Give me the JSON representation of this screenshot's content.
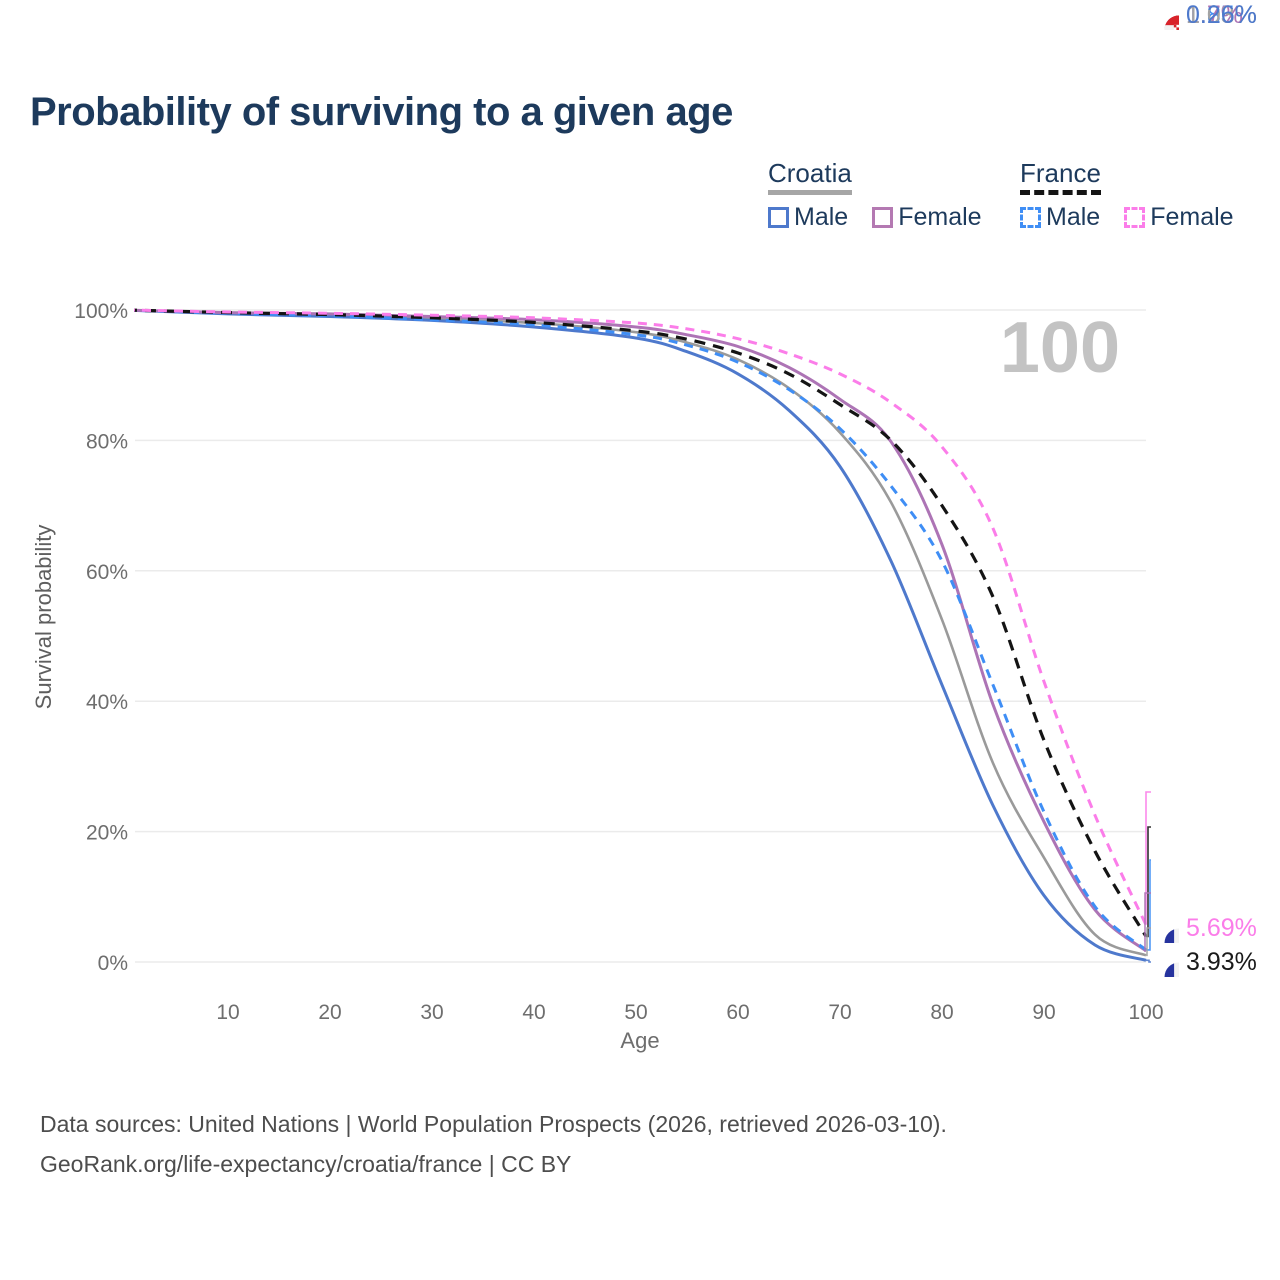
{
  "page": {
    "title": "Probability of surviving to a given age",
    "watermark": "100"
  },
  "legend": {
    "groups": [
      {
        "label": "Croatia",
        "line_style": "solid",
        "underline_color": "#a6a6a6",
        "items": [
          {
            "label": "Male",
            "color": "#4e79cc"
          },
          {
            "label": "Female",
            "color": "#b479b2"
          }
        ]
      },
      {
        "label": "France",
        "line_style": "dashed",
        "underline_color": "#141414",
        "items": [
          {
            "label": "Male",
            "color": "#3f8ef5"
          },
          {
            "label": "Female",
            "color": "#fb7de9"
          }
        ]
      }
    ]
  },
  "chart_data": {
    "type": "line",
    "title": "Probability of surviving to a given age",
    "xlabel": "Age",
    "ylabel": "Survival probability",
    "xlim": [
      0,
      100
    ],
    "ylim": [
      0,
      100
    ],
    "grid": "horizontal-only",
    "legend_position": "top-right",
    "x_tick_labels": [
      "10",
      "20",
      "30",
      "40",
      "50",
      "60",
      "70",
      "80",
      "90",
      "100"
    ],
    "y_tick_labels": [
      "100%",
      "80%",
      "60%",
      "40%",
      "20%",
      "0%"
    ],
    "y_tick_values": [
      100,
      80,
      60,
      40,
      20,
      0
    ],
    "age_watermark": "100",
    "x": [
      0,
      10,
      20,
      30,
      40,
      50,
      55,
      60,
      65,
      70,
      75,
      80,
      85,
      90,
      95,
      100
    ],
    "series": [
      {
        "name": "Croatia Total",
        "country": "Croatia",
        "sex": "Both",
        "color": "#9a9a9a",
        "dash": "solid",
        "end_label": "1.03%",
        "values": [
          100,
          99.5,
          99.2,
          98.7,
          98.0,
          96.6,
          95.0,
          92.4,
          88.0,
          81.2,
          70.5,
          52.5,
          30.5,
          16.0,
          4.2,
          1.03
        ]
      },
      {
        "name": "Croatia Male",
        "country": "Croatia",
        "sex": "Male",
        "color": "#4e79cc",
        "dash": "solid",
        "end_label": "0.26%",
        "values": [
          100,
          99.4,
          99.0,
          98.4,
          97.4,
          95.7,
          93.6,
          90.2,
          84.6,
          76.0,
          61.5,
          42.5,
          24.0,
          10.2,
          2.6,
          0.26
        ]
      },
      {
        "name": "Croatia Female",
        "country": "Croatia",
        "sex": "Female",
        "color": "#ad74b5",
        "dash": "solid",
        "end_label": "1.7%",
        "values": [
          100,
          99.6,
          99.4,
          99.0,
          98.5,
          97.4,
          96.2,
          94.4,
          91.2,
          86.3,
          79.8,
          64.0,
          39.5,
          21.5,
          8.0,
          1.7
        ]
      },
      {
        "name": "France Male",
        "country": "France",
        "sex": "Male",
        "color": "#3f8ef5",
        "dash": "dashed",
        "end_label": "1.85%",
        "values": [
          100,
          99.5,
          99.1,
          98.5,
          97.7,
          96.2,
          94.6,
          92.0,
          87.8,
          81.8,
          73.0,
          61.5,
          42.5,
          23.0,
          8.5,
          1.85
        ]
      },
      {
        "name": "France Total",
        "country": "France",
        "sex": "Both",
        "color": "#141414",
        "dash": "dashed",
        "end_label": "3.93%",
        "values": [
          100,
          99.6,
          99.3,
          98.8,
          98.1,
          96.8,
          95.5,
          93.4,
          90.2,
          85.5,
          80.0,
          70.0,
          56.0,
          34.0,
          17.0,
          3.93
        ]
      },
      {
        "name": "France Female",
        "country": "France",
        "sex": "Female",
        "color": "#fb7de9",
        "dash": "dashed",
        "end_label": "5.69%",
        "values": [
          100,
          99.7,
          99.5,
          99.2,
          98.8,
          98.0,
          97.1,
          95.6,
          93.3,
          90.2,
          85.8,
          79.0,
          66.5,
          43.0,
          22.5,
          5.69
        ]
      }
    ]
  },
  "end_labels": [
    {
      "value": "5.69%",
      "series": "France Female",
      "flag": "france",
      "color": "#fb7de9"
    },
    {
      "value": "3.93%",
      "series": "France Total",
      "flag": "france",
      "color": "#1a1a1a"
    },
    {
      "value": "1.85%",
      "series": "France Male",
      "flag": "france",
      "color": "#3f8ef5"
    },
    {
      "value": "1.7%",
      "series": "Croatia Female",
      "flag": "croatia",
      "color": "#ad74b5"
    },
    {
      "value": "1.03%",
      "series": "Croatia Total",
      "flag": "croatia",
      "color": "#a3a3a3"
    },
    {
      "value": "0.26%",
      "series": "Croatia Male",
      "flag": "croatia",
      "color": "#4e79cc"
    }
  ],
  "footer": {
    "line1": "Data sources: United Nations | World Population Prospects (2026, retrieved 2026-03-10).",
    "line2": "GeoRank.org/life-expectancy/croatia/france | CC BY"
  }
}
